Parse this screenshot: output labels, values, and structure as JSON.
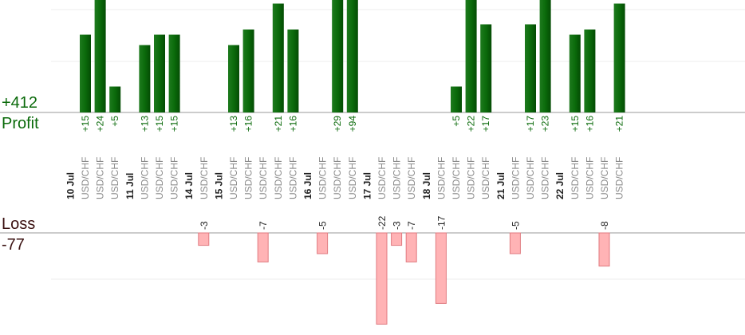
{
  "summary": {
    "profit_total": "+412",
    "profit_label": "Profit",
    "loss_label": "Loss",
    "loss_total": "-77"
  },
  "colors": {
    "profit_bar": "#0b6b0b",
    "profit_text": "#0a6a0a",
    "loss_bar": "#ffb3b5",
    "loss_border": "#e07a80",
    "date_text": "#222222",
    "pair_text": "#8a8a8a",
    "grid": "#ececec",
    "axis": "#9a9a9a"
  },
  "chart_data": {
    "type": "bar",
    "title": "",
    "xlabel": "",
    "ylabel": "",
    "grid": true,
    "profit_ylim": [
      0,
      24
    ],
    "loss_ylim": [
      -22,
      0
    ],
    "days": [
      {
        "date": "10 Jul",
        "trades": [
          {
            "pair": "USD/CHF",
            "value": 15
          },
          {
            "pair": "USD/CHF",
            "value": 24
          },
          {
            "pair": "USD/CHF",
            "value": 5
          }
        ]
      },
      {
        "date": "11 Jul",
        "trades": [
          {
            "pair": "USD/CHF",
            "value": 13
          },
          {
            "pair": "USD/CHF",
            "value": 15
          },
          {
            "pair": "USD/CHF",
            "value": 15
          }
        ]
      },
      {
        "date": "14 Jul",
        "trades": [
          {
            "pair": "USD/CHF",
            "value": -3
          }
        ]
      },
      {
        "date": "15 Jul",
        "trades": [
          {
            "pair": "USD/CHF",
            "value": 13
          },
          {
            "pair": "USD/CHF",
            "value": 16
          },
          {
            "pair": "USD/CHF",
            "value": -7
          },
          {
            "pair": "USD/CHF",
            "value": 21
          },
          {
            "pair": "USD/CHF",
            "value": 16
          }
        ]
      },
      {
        "date": "16 Jul",
        "trades": [
          {
            "pair": "USD/CHF",
            "value": -5
          },
          {
            "pair": "USD/CHF",
            "value": 29
          },
          {
            "pair": "USD/CHF",
            "value": 94
          }
        ]
      },
      {
        "date": "17 Jul",
        "trades": [
          {
            "pair": "USD/CHF",
            "value": -22
          },
          {
            "pair": "USD/CHF",
            "value": -3
          },
          {
            "pair": "USD/CHF",
            "value": -7
          }
        ]
      },
      {
        "date": "18 Jul",
        "trades": [
          {
            "pair": "USD/CHF",
            "value": -17
          },
          {
            "pair": "USD/CHF",
            "value": 5
          },
          {
            "pair": "USD/CHF",
            "value": 22
          },
          {
            "pair": "USD/CHF",
            "value": 17
          }
        ]
      },
      {
        "date": "21 Jul",
        "trades": [
          {
            "pair": "USD/CHF",
            "value": -5
          },
          {
            "pair": "USD/CHF",
            "value": 17
          },
          {
            "pair": "USD/CHF",
            "value": 23
          }
        ]
      },
      {
        "date": "22 Jul",
        "trades": [
          {
            "pair": "USD/CHF",
            "value": 15
          },
          {
            "pair": "USD/CHF",
            "value": 16
          },
          {
            "pair": "USD/CHF",
            "value": -8
          },
          {
            "pair": "USD/CHF",
            "value": 21
          }
        ]
      }
    ]
  }
}
